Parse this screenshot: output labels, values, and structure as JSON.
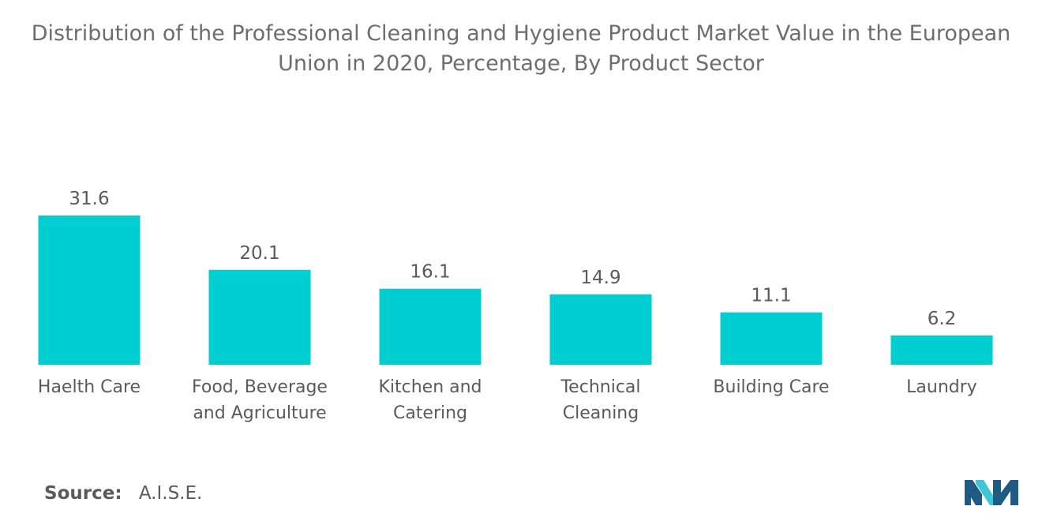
{
  "title_line1": "Distribution of the Professional Cleaning and Hygiene Product Market Value in the European",
  "title_line2": "Union in 2020, Percentage, By Product Sector",
  "source": {
    "label": "Source:",
    "value": "A.I.S.E."
  },
  "colors": {
    "bar": "#00ced1",
    "text": "#5a5a5a",
    "logo_dark": "#1f5a82",
    "logo_light": "#3ec6d6"
  },
  "chart_data": {
    "type": "bar",
    "title": "Distribution of the Professional Cleaning and Hygiene Product Market Value in the European Union in 2020, Percentage, By Product Sector",
    "categories": [
      [
        "Haelth Care"
      ],
      [
        "Food, Beverage",
        "and Agriculture"
      ],
      [
        "Kitchen and",
        "Catering"
      ],
      [
        "Technical",
        "Cleaning"
      ],
      [
        "Building Care"
      ],
      [
        "Laundry"
      ]
    ],
    "values": [
      31.6,
      20.1,
      16.1,
      14.9,
      11.1,
      6.2
    ],
    "value_labels": [
      "31.6",
      "20.1",
      "16.1",
      "14.9",
      "11.1",
      "6.2"
    ],
    "xlabel": "",
    "ylabel": "",
    "ylim": [
      0,
      31.6
    ],
    "grid": false,
    "legend": "none"
  }
}
